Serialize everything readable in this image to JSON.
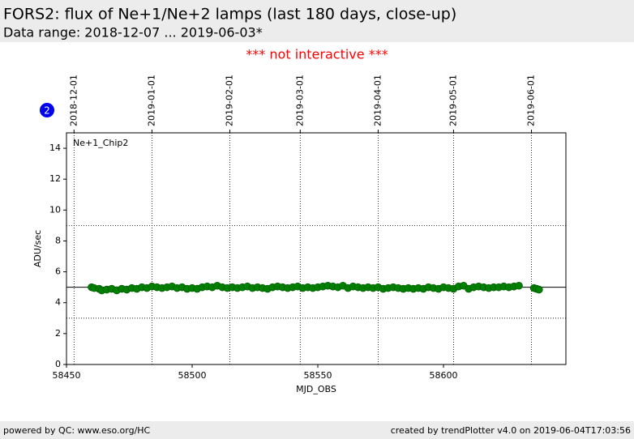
{
  "header": {
    "title": "FORS2: flux of Ne+1/Ne+2 lamps (last 180 days, close-up)",
    "subtitle": "Data range: 2018-12-07 ... 2019-06-03*"
  },
  "notice": "*** not interactive ***",
  "badge": "2",
  "footer": {
    "left": "powered by QC: www.eso.org/HC",
    "right": "created by trendPlotter v4.0 on 2019-06-04T17:03:56"
  },
  "chart_data": {
    "type": "scatter",
    "annotation": "Ne+1_Chip2",
    "x_label": "MJD_OBS",
    "y_label": "ADU/sec",
    "xlim": [
      58450,
      58648.7
    ],
    "ylim": [
      0,
      15
    ],
    "xticks": [
      58450,
      58500,
      58550,
      58600
    ],
    "yticks": [
      0,
      2,
      4,
      6,
      8,
      10,
      12,
      14
    ],
    "x2ticks": [
      {
        "value": 58453,
        "label": "2018-12-01"
      },
      {
        "value": 58484,
        "label": "2019-01-01"
      },
      {
        "value": 58515,
        "label": "2019-02-01"
      },
      {
        "value": 58543,
        "label": "2019-03-01"
      },
      {
        "value": 58574,
        "label": "2019-04-01"
      },
      {
        "value": 58604,
        "label": "2019-05-01"
      },
      {
        "value": 58635,
        "label": "2019-06-01"
      }
    ],
    "reference_lines": [
      {
        "value": 3,
        "style": "dotted"
      },
      {
        "value": 5,
        "style": "solid"
      },
      {
        "value": 9,
        "style": "dotted"
      }
    ],
    "series": [
      {
        "name": "Ne+1_Chip2",
        "color": "#008000",
        "x": [
          58460,
          58461,
          58463,
          58464,
          58466,
          58468,
          58470,
          58472,
          58474,
          58476,
          58478,
          58480,
          58482,
          58484,
          58486,
          58488,
          58490,
          58492,
          58494,
          58496,
          58498,
          58500,
          58502,
          58504,
          58506,
          58508,
          58510,
          58512,
          58514,
          58516,
          58518,
          58520,
          58522,
          58524,
          58526,
          58528,
          58530,
          58532,
          58534,
          58536,
          58538,
          58540,
          58542,
          58544,
          58546,
          58548,
          58550,
          58552,
          58554,
          58556,
          58558,
          58560,
          58562,
          58564,
          58566,
          58568,
          58570,
          58572,
          58574,
          58576,
          58578,
          58580,
          58582,
          58584,
          58586,
          58588,
          58590,
          58592,
          58594,
          58596,
          58598,
          58600,
          58602,
          58604,
          58606,
          58608,
          58610,
          58612,
          58614,
          58616,
          58618,
          58620,
          58622,
          58624,
          58626,
          58628,
          58630,
          58636,
          58637,
          58638
        ],
        "values": [
          5.0,
          4.95,
          4.9,
          4.8,
          4.85,
          4.9,
          4.8,
          4.9,
          4.85,
          4.95,
          4.9,
          5.0,
          4.95,
          5.05,
          5.0,
          4.95,
          5.0,
          5.05,
          4.95,
          5.0,
          4.9,
          4.95,
          4.9,
          5.0,
          5.05,
          5.0,
          5.1,
          5.0,
          4.95,
          5.0,
          4.95,
          5.0,
          5.05,
          4.95,
          5.0,
          4.95,
          4.9,
          5.0,
          5.05,
          5.0,
          4.95,
          5.0,
          5.05,
          4.95,
          5.0,
          4.95,
          5.0,
          5.05,
          5.1,
          5.05,
          5.0,
          5.1,
          4.95,
          5.05,
          5.0,
          4.95,
          5.0,
          4.95,
          5.0,
          4.9,
          4.95,
          5.0,
          4.95,
          4.9,
          4.95,
          4.9,
          4.95,
          4.9,
          5.0,
          4.95,
          4.9,
          5.0,
          4.95,
          4.9,
          5.05,
          5.1,
          4.9,
          5.0,
          5.05,
          5.0,
          4.95,
          5.0,
          5.0,
          5.05,
          5.0,
          5.05,
          5.1,
          4.95,
          4.9,
          4.85
        ]
      }
    ]
  }
}
